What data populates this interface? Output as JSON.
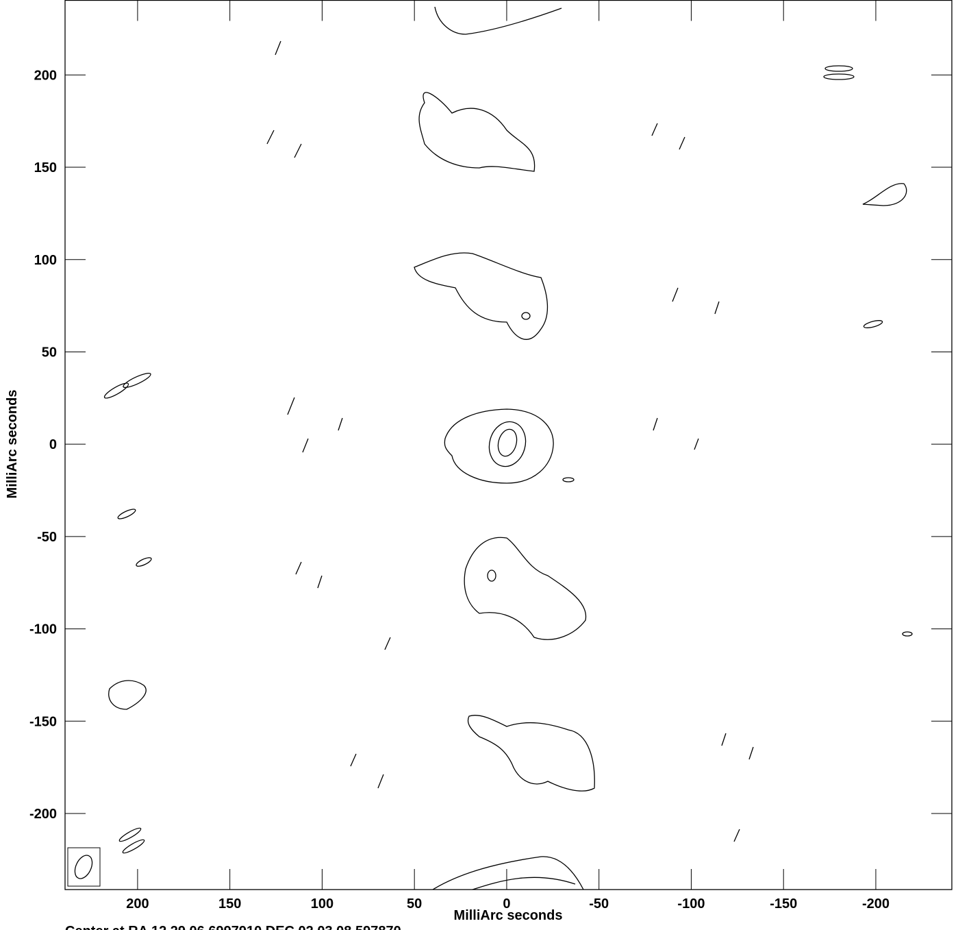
{
  "chart_data": {
    "type": "contour",
    "xlabel": "MilliArc seconds",
    "ylabel": "MilliArc seconds",
    "footer": "Center at RA 12 29 06.6997910  DEC 02 03 08.597870",
    "xlim": [
      239.3,
      -241.2
    ],
    "ylim": [
      -241.2,
      240.4
    ],
    "xticks": [
      200,
      150,
      100,
      50,
      0,
      -50,
      -100,
      -150,
      -200
    ],
    "yticks": [
      -200,
      -150,
      -100,
      -50,
      0,
      50,
      100,
      150,
      200
    ]
  }
}
